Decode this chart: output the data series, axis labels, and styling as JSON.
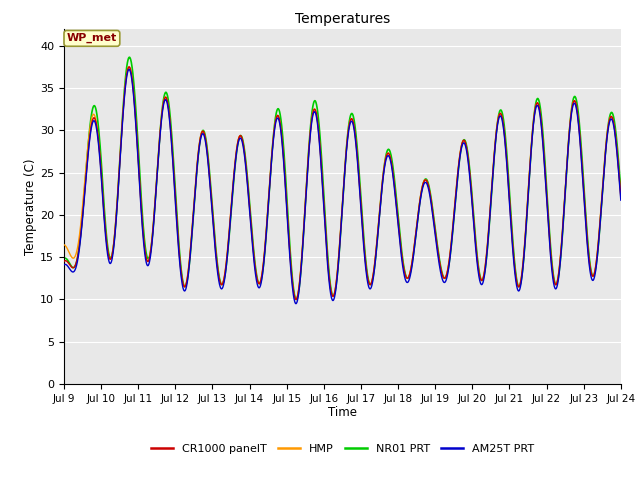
{
  "title": "Temperatures",
  "xlabel": "Time",
  "ylabel": "Temperature (C)",
  "ylim": [
    0,
    42
  ],
  "yticks": [
    0,
    5,
    10,
    15,
    20,
    25,
    30,
    35,
    40
  ],
  "plot_bg_color": "#e8e8e8",
  "fig_bg_color": "#ffffff",
  "annotation_text": "WP_met",
  "annotation_bg": "#ffffcc",
  "annotation_border": "#999933",
  "annotation_text_color": "#880000",
  "series": {
    "CR1000 panelT": {
      "color": "#cc0000",
      "lw": 1.0,
      "zorder": 4
    },
    "HMP": {
      "color": "#ff9900",
      "lw": 1.0,
      "zorder": 3
    },
    "NR01 PRT": {
      "color": "#00cc00",
      "lw": 1.2,
      "zorder": 2
    },
    "AM25T PRT": {
      "color": "#0000cc",
      "lw": 1.0,
      "zorder": 5
    }
  },
  "x_tick_labels": [
    "Jul 9",
    "Jul 10",
    "Jul 11",
    "Jul 12",
    "Jul 13",
    "Jul 14",
    "Jul 15",
    "Jul 16",
    "Jul 17",
    "Jul 18",
    "Jul 19",
    "Jul 20",
    "Jul 21",
    "Jul 22",
    "Jul 23",
    "Jul 24"
  ],
  "daily_max_cr": [
    15.5,
    36.0,
    38.0,
    32.5,
    29.0,
    29.5,
    32.5,
    32.5,
    31.0,
    26.0,
    23.5,
    30.5,
    32.5,
    33.5,
    33.5,
    31.0,
    30.0
  ],
  "daily_min_cr": [
    13.5,
    14.5,
    15.5,
    11.5,
    11.5,
    12.5,
    10.0,
    10.0,
    11.5,
    12.5,
    12.5,
    12.5,
    11.5,
    11.5,
    12.5,
    13.5,
    18.5
  ],
  "daily_max_hmp_offset": [
    2.5,
    0.0,
    0.0,
    0.0,
    0.0,
    0.0,
    0.0,
    0.0,
    0.0,
    0.0,
    0.0,
    0.0,
    0.0,
    0.0,
    0.0,
    0.0,
    0.0
  ],
  "daily_min_hmp_offset": [
    1.5,
    0.0,
    0.0,
    0.0,
    0.0,
    0.0,
    0.0,
    0.0,
    0.0,
    0.0,
    0.0,
    0.0,
    0.0,
    0.0,
    0.0,
    0.0,
    0.0
  ],
  "daily_max_nro_offset": [
    0.5,
    1.5,
    1.0,
    0.5,
    0.0,
    0.0,
    1.0,
    1.0,
    0.5,
    0.5,
    0.0,
    0.0,
    0.5,
    0.5,
    0.5,
    0.5,
    0.0
  ],
  "daily_min_nro_offset": [
    0.0,
    0.0,
    0.5,
    0.0,
    0.0,
    0.0,
    0.0,
    0.0,
    0.0,
    0.0,
    0.0,
    0.0,
    0.0,
    0.0,
    0.0,
    0.0,
    0.0
  ],
  "daily_max_am25_offset": [
    -0.3,
    -0.3,
    -0.3,
    -0.3,
    -0.3,
    -0.3,
    -0.3,
    -0.3,
    -0.3,
    -0.3,
    -0.3,
    -0.3,
    -0.3,
    -0.3,
    -0.3,
    -0.3,
    -0.3
  ],
  "daily_min_am25_offset": [
    -0.5,
    -0.5,
    -0.5,
    -0.5,
    -0.5,
    -0.5,
    -0.5,
    -0.5,
    -0.5,
    -0.5,
    -0.5,
    -0.5,
    -0.5,
    -0.5,
    -0.5,
    -0.5,
    -0.5
  ],
  "peak_phase": 0.625,
  "trough_phase": 0.25
}
